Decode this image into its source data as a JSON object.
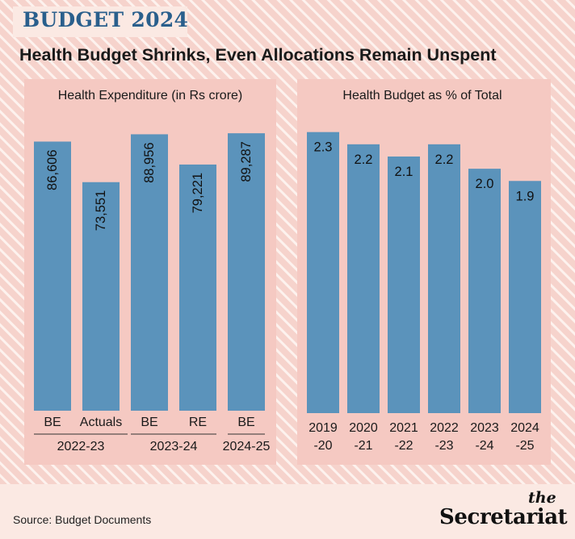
{
  "header": {
    "badge": "BUDGET 2024",
    "headline": "Health Budget Shrinks, Even Allocations Remain Unspent"
  },
  "chart_data": [
    {
      "type": "bar",
      "title": "Health Expenditure (in Rs crore)",
      "categories": [
        "BE",
        "Actuals",
        "BE",
        "RE",
        "BE"
      ],
      "groups": [
        {
          "label": "2022-23",
          "members": [
            0,
            1
          ]
        },
        {
          "label": "2023-24",
          "members": [
            2,
            3
          ]
        },
        {
          "label": "2024-25",
          "members": [
            4
          ]
        }
      ],
      "values": [
        86606,
        73551,
        88956,
        79221,
        89287
      ],
      "value_labels": [
        "86,606",
        "73,551",
        "88,956",
        "79,221",
        "89,287"
      ],
      "ylim": [
        0,
        94000
      ],
      "grid": false,
      "bar_color": "#5b93bb"
    },
    {
      "type": "bar",
      "title": "Health Budget as % of Total",
      "categories": [
        [
          "2019",
          "-20"
        ],
        [
          "2020",
          "-21"
        ],
        [
          "2021",
          "-22"
        ],
        [
          "2022",
          "-23"
        ],
        [
          "2023",
          "-24"
        ],
        [
          "2024",
          "-25"
        ]
      ],
      "values": [
        2.3,
        2.2,
        2.1,
        2.2,
        2.0,
        1.9
      ],
      "value_labels": [
        "2.3",
        "2.2",
        "2.1",
        "2.2",
        "2.0",
        "1.9"
      ],
      "ylim": [
        0,
        2.43
      ],
      "grid": false,
      "bar_color": "#5b93bb"
    }
  ],
  "footer": {
    "source": "Source: Budget Documents",
    "logo_the": "the",
    "logo_name": "Secretariat"
  },
  "colors": {
    "background": "#fbe9e3",
    "hatch_light": "#f6d3cc",
    "hatch_stripe": "#fdf2ee",
    "panel": "#f5c9c2",
    "bar": "#5b93bb",
    "badge_text": "#2a5f8c"
  }
}
